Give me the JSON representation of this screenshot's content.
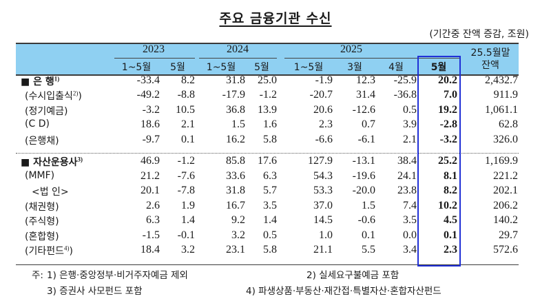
{
  "title": "주요 금융기관 수신",
  "unit": "(기간중 잔액 증감, 조원)",
  "header": {
    "years": [
      "2023",
      "2024",
      "2025"
    ],
    "periods": [
      "1~5월",
      "5월",
      "1~5월",
      "5월",
      "1~5월",
      "3월",
      "4월",
      "5월"
    ],
    "balance_label_1": "25.5월말",
    "balance_label_2": "잔액"
  },
  "rows": [
    {
      "label": "■ 은 행",
      "sup": "1)",
      "major": true,
      "values": [
        "-33.4",
        "8.2",
        "31.8",
        "25.0",
        "-1.9",
        "12.3",
        "-25.9",
        "20.2",
        "2,432.7"
      ]
    },
    {
      "label": "(수시입출식",
      "sup": "2)",
      "suffix": ")",
      "major": false,
      "values": [
        "-49.2",
        "-8.8",
        "-17.9",
        "-1.2",
        "-20.7",
        "31.4",
        "-36.8",
        "7.0",
        "911.9"
      ]
    },
    {
      "label": "(정기예금)",
      "major": false,
      "values": [
        "-3.2",
        "10.5",
        "36.8",
        "13.9",
        "20.6",
        "-12.6",
        "0.5",
        "19.2",
        "1,061.1"
      ]
    },
    {
      "label": "(C D)",
      "major": false,
      "values": [
        "18.6",
        "2.1",
        "1.5",
        "1.6",
        "2.3",
        "0.7",
        "3.9",
        "-2.8",
        "62.8"
      ]
    },
    {
      "label": "(은행채)",
      "major": false,
      "values": [
        "-9.7",
        "0.1",
        "16.2",
        "5.8",
        "-6.6",
        "-6.1",
        "2.1",
        "-3.2",
        "326.0"
      ]
    },
    {
      "label": "■ 자산운용사",
      "sup": "3)",
      "major": true,
      "values": [
        "46.9",
        "-1.2",
        "85.8",
        "17.6",
        "127.9",
        "-13.1",
        "38.4",
        "25.2",
        "1,169.9"
      ]
    },
    {
      "label": "(MMF)",
      "major": false,
      "values": [
        "21.2",
        "-7.6",
        "33.6",
        "6.3",
        "54.3",
        "-19.6",
        "24.1",
        "8.1",
        "221.2"
      ]
    },
    {
      "label": "<법 인>",
      "major": false,
      "indent": true,
      "values": [
        "20.1",
        "-7.8",
        "31.8",
        "5.7",
        "53.3",
        "-20.0",
        "23.8",
        "8.2",
        "202.1"
      ]
    },
    {
      "label": "(채권형)",
      "major": false,
      "values": [
        "2.6",
        "1.9",
        "16.7",
        "3.5",
        "37.0",
        "1.5",
        "7.4",
        "10.2",
        "206.2"
      ]
    },
    {
      "label": "(주식형)",
      "major": false,
      "values": [
        "6.3",
        "1.4",
        "9.2",
        "1.4",
        "14.5",
        "-0.6",
        "3.5",
        "4.5",
        "140.2"
      ]
    },
    {
      "label": "(혼합형)",
      "major": false,
      "values": [
        "-1.5",
        "-0.1",
        "3.2",
        "0.5",
        "1.0",
        "0.1",
        "0.0",
        "0.1",
        "29.7"
      ]
    },
    {
      "label": "(기타펀드",
      "sup": "4)",
      "suffix": ")",
      "major": false,
      "values": [
        "18.4",
        "3.2",
        "23.1",
        "5.8",
        "21.1",
        "5.5",
        "3.4",
        "2.3",
        "572.6"
      ]
    }
  ],
  "notes": {
    "prefix": "주:",
    "n1": "1) 은행·중앙정부·비거주자예금 제외",
    "n2": "2) 실세요구불예금 포함",
    "n3": "3) 증권사 사모펀드 포함",
    "n4": "4) 파생상품·부동산·재간접·특별자산·혼합자산펀드"
  },
  "colors": {
    "header_bg": "#8fd0f2",
    "highlight_border": "#1f2fd6"
  }
}
